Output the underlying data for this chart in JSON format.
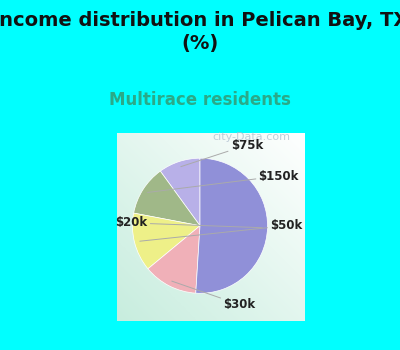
{
  "title": "Income distribution in Pelican Bay, TX\n(%)",
  "subtitle": "Multirace residents",
  "title_fontsize": 14,
  "subtitle_fontsize": 12,
  "title_color": "#111111",
  "subtitle_color": "#2aaa88",
  "background_color": "#00FFFF",
  "chart_facecolor": "#e8f5ee",
  "slices": [
    {
      "label": "$75k",
      "value": 10,
      "color": "#b8b0e8"
    },
    {
      "label": "$150k",
      "value": 12,
      "color": "#a0b888"
    },
    {
      "label": "$50k",
      "value": 14,
      "color": "#eef088"
    },
    {
      "label": "$30k",
      "value": 13,
      "color": "#f0b0b8"
    },
    {
      "label": "$20k",
      "value": 51,
      "color": "#9090d8"
    }
  ],
  "label_fontsize": 8.5,
  "label_color": "#222222",
  "watermark": "city-Data.com",
  "watermark_color": "#aabbcc",
  "watermark_fontsize": 8
}
